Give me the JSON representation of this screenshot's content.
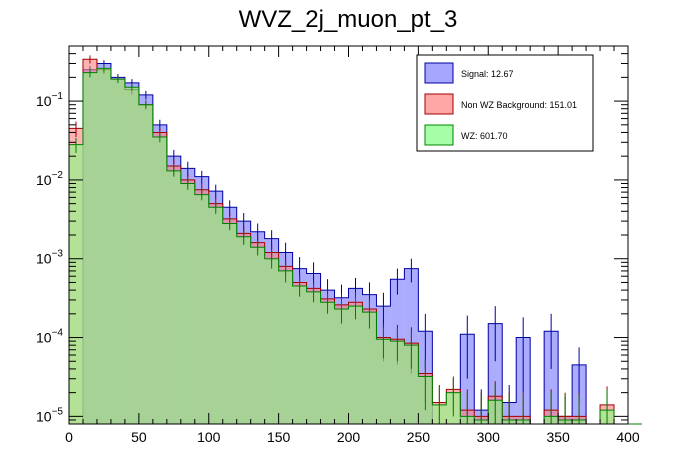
{
  "chart_data": {
    "type": "histogram",
    "title": "WVZ_2j_muon_pt_3",
    "xlabel": "",
    "ylabel": "",
    "xlim": [
      0,
      400
    ],
    "ylim": [
      8e-06,
      0.5
    ],
    "yscale": "log",
    "bin_width": 10,
    "x_ticks": [
      "0",
      "50",
      "100",
      "150",
      "200",
      "250",
      "300",
      "350",
      "400"
    ],
    "y_ticks": [
      {
        "value": 0.1,
        "base": "10",
        "exp": "−1"
      },
      {
        "value": 0.01,
        "base": "10",
        "exp": "−2"
      },
      {
        "value": 0.001,
        "base": "10",
        "exp": "−3"
      },
      {
        "value": 0.0001,
        "base": "10",
        "exp": "−4"
      },
      {
        "value": 1e-05,
        "base": "10",
        "exp": "−5"
      }
    ],
    "legend_position": "top-right",
    "series": [
      {
        "name": "Signal: 12.67",
        "color": "#8080ff",
        "line_color": "#0000a0",
        "alpha": 0.65,
        "values": [
          0,
          0.25,
          0.3,
          0.2,
          0.17,
          0.12,
          0.05,
          0.02,
          0.014,
          0.011,
          0.0072,
          0.0045,
          0.003,
          0.0022,
          0.0018,
          0.0012,
          0.00075,
          0.00065,
          0.0004,
          0.00032,
          0.00042,
          0.00035,
          0.00025,
          0.00055,
          0.00075,
          0.00012,
          0,
          0,
          0.00011,
          1.2e-05,
          0.00015,
          1.5e-05,
          0.0001,
          0,
          0.00012,
          1e-05,
          4.5e-05,
          0,
          0,
          0,
          0
        ],
        "error": [
          0,
          0.03,
          0.03,
          0.02,
          0.02,
          0.015,
          0.008,
          0.004,
          0.003,
          0.002,
          0.0015,
          0.001,
          0.0008,
          0.0006,
          0.0005,
          0.0004,
          0.0003,
          0.00025,
          0.00015,
          0.00015,
          0.00015,
          0.00015,
          0.00012,
          0.0002,
          0.00025,
          8e-05,
          0,
          0,
          8e-05,
          1e-05,
          0.0001,
          1e-05,
          8e-05,
          0,
          8e-05,
          8e-06,
          3e-05,
          0,
          0,
          0,
          0
        ]
      },
      {
        "name": "Non WZ Background: 151.01",
        "color": "#ff8080",
        "line_color": "#a00000",
        "alpha": 0.6,
        "values": [
          0.045,
          0.34,
          0.25,
          0.19,
          0.14,
          0.09,
          0.04,
          0.015,
          0.01,
          0.0075,
          0.005,
          0.0032,
          0.0021,
          0.0016,
          0.0012,
          0.0008,
          0.0005,
          0.00042,
          0.00031,
          0.00026,
          0.00028,
          0.00023,
          0.0001,
          9.5e-05,
          8.5e-05,
          3.5e-05,
          1.5e-05,
          2.2e-05,
          1.2e-05,
          1e-05,
          1.8e-05,
          1e-05,
          1e-05,
          0,
          1.2e-05,
          1e-05,
          1e-05,
          0,
          1.4e-05,
          0,
          0
        ],
        "error": [
          0.01,
          0.04,
          0.03,
          0.02,
          0.02,
          0.012,
          0.006,
          0.003,
          0.002,
          0.0015,
          0.001,
          0.0007,
          0.0005,
          0.0004,
          0.0003,
          0.0002,
          0.00015,
          0.00012,
          0.0001,
          0.0001,
          0.0001,
          0.0001,
          5e-05,
          5e-05,
          5e-05,
          2e-05,
          1e-05,
          1e-05,
          1e-05,
          1e-05,
          1e-05,
          1e-05,
          1e-05,
          0,
          1e-05,
          1e-05,
          1e-05,
          0,
          1e-05,
          0,
          0
        ]
      },
      {
        "name": "WZ: 601.70",
        "color": "#80ff80",
        "line_color": "#008000",
        "alpha": 0.6,
        "values": [
          0.028,
          0.23,
          0.26,
          0.19,
          0.15,
          0.09,
          0.035,
          0.013,
          0.009,
          0.0065,
          0.0045,
          0.0028,
          0.0019,
          0.0014,
          0.001,
          0.0007,
          0.00045,
          0.00038,
          0.00028,
          0.00023,
          0.00025,
          0.00021,
          9.5e-05,
          9e-05,
          8e-05,
          3.2e-05,
          1.4e-05,
          2e-05,
          1e-05,
          9e-06,
          1.6e-05,
          9e-06,
          9e-06,
          0,
          1e-05,
          9e-06,
          9e-06,
          0,
          1.2e-05,
          0,
          0
        ],
        "error": [
          0.006,
          0.03,
          0.03,
          0.02,
          0.015,
          0.01,
          0.005,
          0.002,
          0.0015,
          0.001,
          0.0008,
          0.0005,
          0.0004,
          0.0003,
          0.00025,
          0.0002,
          0.00012,
          0.0001,
          8e-05,
          8e-05,
          8e-05,
          8e-05,
          4e-05,
          4e-05,
          4e-05,
          2e-05,
          1e-05,
          1e-05,
          1e-05,
          1e-05,
          1e-05,
          1e-05,
          1e-05,
          0,
          1e-05,
          1e-05,
          1e-05,
          0,
          1e-05,
          0,
          0
        ]
      }
    ]
  }
}
